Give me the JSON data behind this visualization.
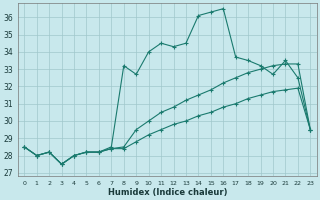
{
  "xlabel": "Humidex (Indice chaleur)",
  "bg_color": "#c8e8ec",
  "grid_color": "#a0c8cc",
  "line_color": "#1a7a6e",
  "xlim": [
    -0.5,
    23.5
  ],
  "ylim": [
    26.8,
    36.8
  ],
  "yticks": [
    27,
    28,
    29,
    30,
    31,
    32,
    33,
    34,
    35,
    36
  ],
  "xticks": [
    0,
    1,
    2,
    3,
    4,
    5,
    6,
    7,
    8,
    9,
    10,
    11,
    12,
    13,
    14,
    15,
    16,
    17,
    18,
    19,
    20,
    21,
    22,
    23
  ],
  "line1_x": [
    0,
    1,
    2,
    3,
    4,
    5,
    6,
    7,
    8,
    9,
    10,
    11,
    12,
    13,
    14,
    15,
    16,
    17,
    18,
    19,
    20,
    21,
    22,
    23
  ],
  "line1_y": [
    28.5,
    28.0,
    28.2,
    27.5,
    28.0,
    28.2,
    28.2,
    28.4,
    28.4,
    28.8,
    29.2,
    29.5,
    29.8,
    30.0,
    30.3,
    30.5,
    30.8,
    31.0,
    31.3,
    31.5,
    31.7,
    31.8,
    31.9,
    29.5
  ],
  "line2_x": [
    0,
    1,
    2,
    3,
    4,
    5,
    6,
    7,
    8,
    9,
    10,
    11,
    12,
    13,
    14,
    15,
    16,
    17,
    18,
    19,
    20,
    21,
    22,
    23
  ],
  "line2_y": [
    28.5,
    28.0,
    28.2,
    27.5,
    28.0,
    28.2,
    28.2,
    28.4,
    28.5,
    29.5,
    30.0,
    30.5,
    30.8,
    31.2,
    31.5,
    31.8,
    32.2,
    32.5,
    32.8,
    33.0,
    33.2,
    33.3,
    33.3,
    29.5
  ],
  "line3_x": [
    0,
    1,
    2,
    3,
    4,
    5,
    6,
    7,
    8,
    9,
    10,
    11,
    12,
    13,
    14,
    15,
    16,
    17,
    18,
    19,
    20,
    21,
    22,
    23
  ],
  "line3_y": [
    28.5,
    28.0,
    28.2,
    27.5,
    28.0,
    28.2,
    28.2,
    28.5,
    33.2,
    32.7,
    34.0,
    34.5,
    34.3,
    34.5,
    36.1,
    36.3,
    36.5,
    33.7,
    33.5,
    33.2,
    32.7,
    33.5,
    32.5,
    29.5
  ]
}
